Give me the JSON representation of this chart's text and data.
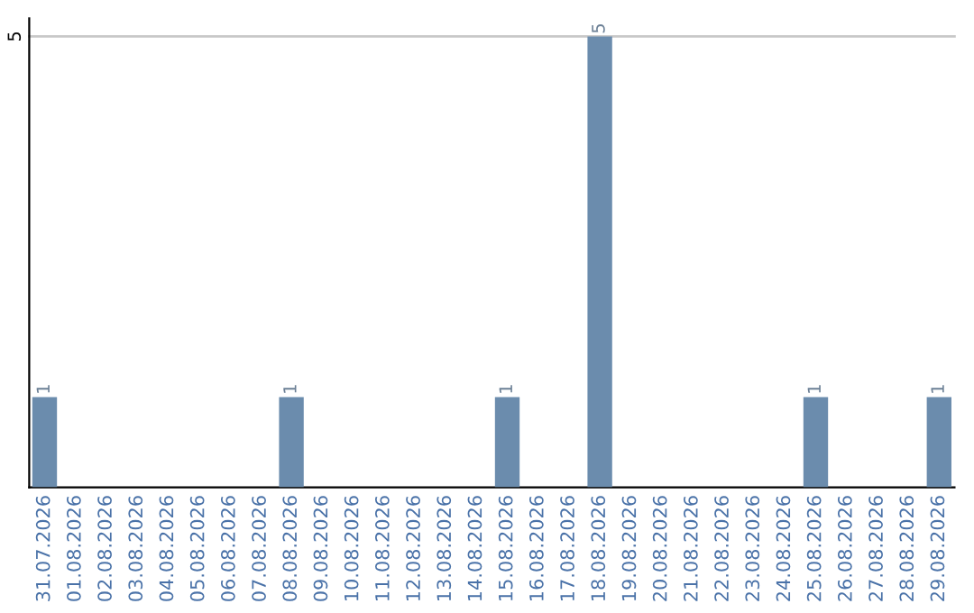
{
  "chart_data": {
    "type": "bar",
    "categories": [
      "31.07.2026",
      "01.08.2026",
      "02.08.2026",
      "03.08.2026",
      "04.08.2026",
      "05.08.2026",
      "06.08.2026",
      "07.08.2026",
      "08.08.2026",
      "09.08.2026",
      "10.08.2026",
      "11.08.2026",
      "12.08.2026",
      "13.08.2026",
      "14.08.2026",
      "15.08.2026",
      "16.08.2026",
      "17.08.2026",
      "18.08.2026",
      "19.08.2026",
      "20.08.2026",
      "21.08.2026",
      "22.08.2026",
      "23.08.2026",
      "24.08.2026",
      "25.08.2026",
      "26.08.2026",
      "27.08.2026",
      "28.08.2026",
      "29.08.2026"
    ],
    "values": [
      1,
      0,
      0,
      0,
      0,
      0,
      0,
      0,
      1,
      0,
      0,
      0,
      0,
      0,
      0,
      1,
      0,
      0,
      5,
      0,
      0,
      0,
      0,
      0,
      0,
      1,
      0,
      0,
      0,
      1
    ],
    "color": "#6b8cad",
    "ylim": [
      0,
      5.2
    ],
    "yticks": [
      5
    ],
    "value_labels": [
      "1",
      null,
      null,
      null,
      null,
      null,
      null,
      null,
      "1",
      null,
      null,
      null,
      null,
      null,
      null,
      "1",
      null,
      null,
      "5",
      null,
      null,
      null,
      null,
      null,
      null,
      "1",
      null,
      null,
      null,
      "1"
    ],
    "grid": "y"
  }
}
